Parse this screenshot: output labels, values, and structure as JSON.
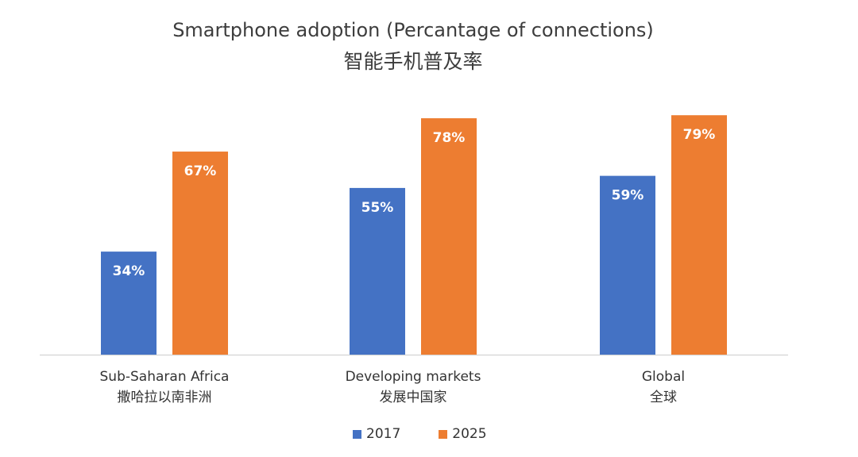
{
  "chart_data": {
    "type": "bar",
    "title": "Smartphone adoption (Percantage of connections)",
    "subtitle": "智能手机普及率",
    "categories": [
      {
        "en": "Sub-Saharan Africa",
        "zh": "撒哈拉以南非洲"
      },
      {
        "en": "Developing markets",
        "zh": "发展中国家"
      },
      {
        "en": "Global",
        "zh": "全球"
      }
    ],
    "series": [
      {
        "name": "2017",
        "color": "#4472C4",
        "values": [
          34,
          55,
          59
        ],
        "labels": [
          "34%",
          "55%",
          "59%"
        ]
      },
      {
        "name": "2025",
        "color": "#ED7D31",
        "values": [
          67,
          78,
          79
        ],
        "labels": [
          "67%",
          "78%",
          "79%"
        ]
      }
    ],
    "ylim": [
      0,
      100
    ],
    "grid": false,
    "legend": "bottom-center"
  }
}
